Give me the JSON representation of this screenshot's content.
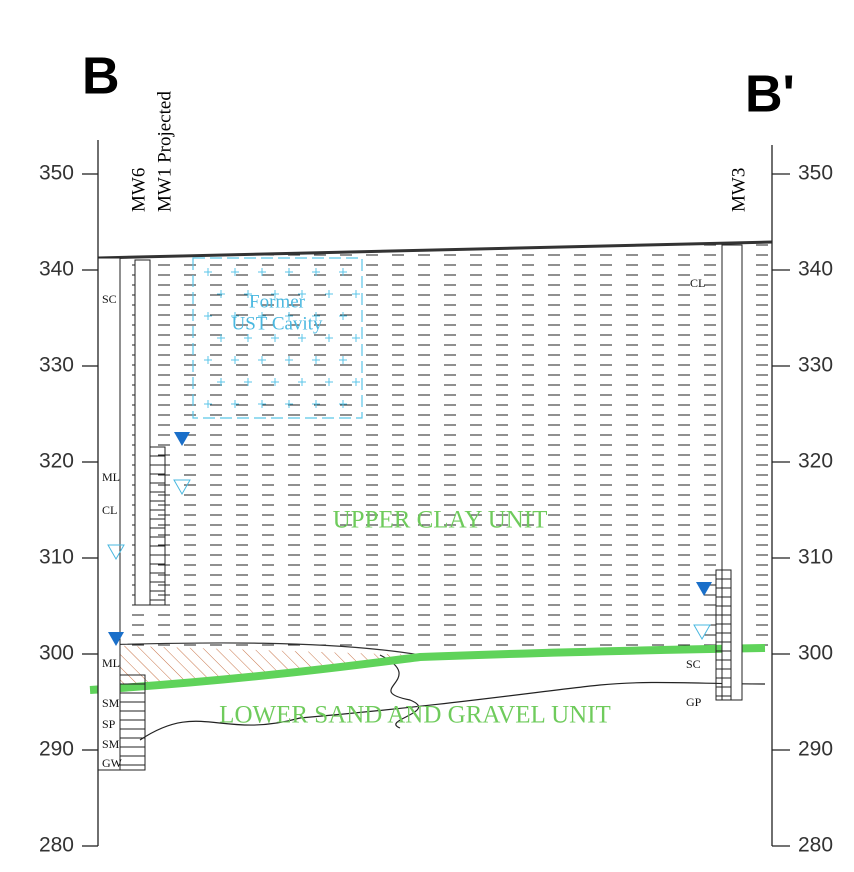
{
  "section": {
    "start_label": "B",
    "end_label": "B'"
  },
  "left_axis": {
    "ticks": [
      350,
      340,
      330,
      320,
      310,
      300,
      290,
      280
    ]
  },
  "right_axis": {
    "ticks": [
      350,
      340,
      330,
      320,
      310,
      300,
      290,
      280
    ]
  },
  "wells": [
    {
      "label": "MW6"
    },
    {
      "label": "MW1 Projected"
    },
    {
      "label": "MW3"
    }
  ],
  "cavity": {
    "line1": "Former",
    "line2": "UST Cavity"
  },
  "units": {
    "upper": "UPPER CLAY UNIT",
    "lower": "LOWER SAND AND GRAVEL UNIT"
  },
  "left_soils": [
    "SC",
    "ML",
    "CL",
    "ML",
    "SM",
    "SP",
    "SM",
    "GW"
  ],
  "right_soils": [
    "CL",
    "SC",
    "GP"
  ]
}
